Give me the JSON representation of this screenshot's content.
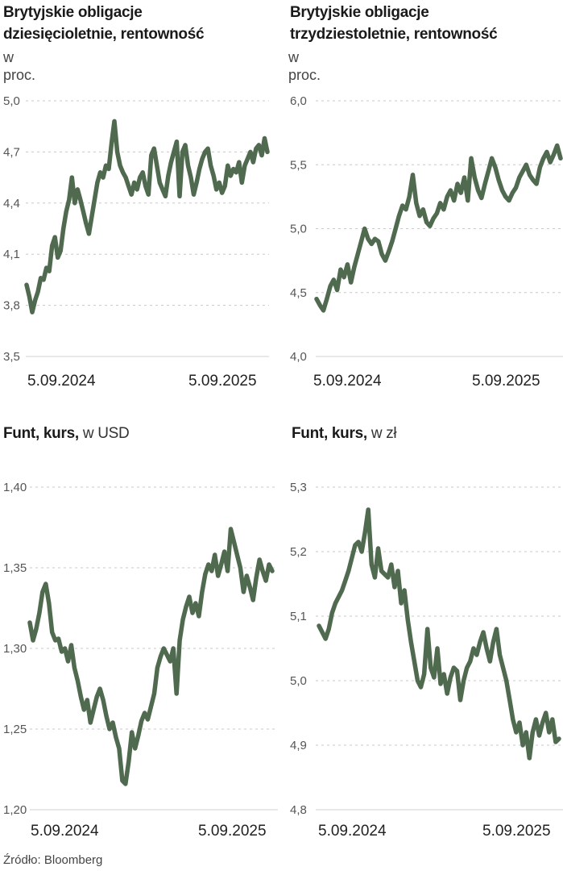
{
  "source": "Źródło: Bloomberg",
  "style": {
    "line_color": "#4f6a4e"
  },
  "chart_data": [
    {
      "type": "line",
      "title_bold": "Brytyjskie obligacje dziesięcioletnie, rentowność",
      "title_light": "",
      "subtitle": "w proc.",
      "yticks": [
        "5,0",
        "4,7",
        "4,4",
        "4,1",
        "3,8",
        "3,5"
      ],
      "ytick_values": [
        5.0,
        4.7,
        4.4,
        4.1,
        3.8,
        3.5
      ],
      "ylim": [
        3.5,
        5.0
      ],
      "xticks": [
        "5.09.2024",
        "5.09.2025"
      ],
      "series": [
        {
          "values": [
            3.92,
            3.85,
            3.76,
            3.83,
            3.88,
            3.96,
            3.95,
            4.02,
            4.0,
            4.15,
            4.2,
            4.08,
            4.12,
            4.25,
            4.35,
            4.42,
            4.55,
            4.4,
            4.48,
            4.42,
            4.35,
            4.28,
            4.22,
            4.32,
            4.42,
            4.52,
            4.58,
            4.55,
            4.62,
            4.6,
            4.75,
            4.88,
            4.7,
            4.62,
            4.58,
            4.55,
            4.5,
            4.45,
            4.52,
            4.48,
            4.55,
            4.58,
            4.5,
            4.45,
            4.68,
            4.72,
            4.62,
            4.52,
            4.48,
            4.44,
            4.56,
            4.64,
            4.7,
            4.76,
            4.44,
            4.7,
            4.74,
            4.62,
            4.55,
            4.45,
            4.52,
            4.6,
            4.66,
            4.7,
            4.72,
            4.62,
            4.56,
            4.48,
            4.52,
            4.46,
            4.5,
            4.62,
            4.56,
            4.6,
            4.58,
            4.64,
            4.52,
            4.62,
            4.66,
            4.7,
            4.64,
            4.72,
            4.74,
            4.68,
            4.78,
            4.7
          ]
        }
      ]
    },
    {
      "type": "line",
      "title_bold": "Brytyjskie obligacje trzydziestoletnie, rentowność",
      "title_light": "",
      "subtitle": "w proc.",
      "yticks": [
        "6,0",
        "5,5",
        "5,0",
        "4,5",
        "4,0"
      ],
      "ytick_values": [
        6.0,
        5.5,
        5.0,
        4.5,
        4.0
      ],
      "ylim": [
        4.0,
        6.0
      ],
      "xticks": [
        "5.09.2024",
        "5.09.2025"
      ],
      "series": [
        {
          "values": [
            4.45,
            4.4,
            4.36,
            4.45,
            4.55,
            4.6,
            4.52,
            4.68,
            4.62,
            4.72,
            4.58,
            4.7,
            4.8,
            4.9,
            5.0,
            4.92,
            4.88,
            4.92,
            4.9,
            4.8,
            4.75,
            4.82,
            4.9,
            5.0,
            5.1,
            5.18,
            5.15,
            5.25,
            5.42,
            5.2,
            5.1,
            5.15,
            5.05,
            5.02,
            5.08,
            5.12,
            5.2,
            5.15,
            5.25,
            5.3,
            5.22,
            5.35,
            5.28,
            5.4,
            5.22,
            5.55,
            5.4,
            5.3,
            5.24,
            5.35,
            5.45,
            5.55,
            5.48,
            5.38,
            5.3,
            5.25,
            5.22,
            5.28,
            5.32,
            5.4,
            5.45,
            5.5,
            5.42,
            5.38,
            5.35,
            5.48,
            5.55,
            5.6,
            5.52,
            5.58,
            5.65,
            5.55
          ]
        }
      ]
    },
    {
      "type": "line",
      "title_bold": "Funt, kurs,",
      "title_light": "w USD",
      "subtitle": "",
      "yticks": [
        "1,40",
        "1,35",
        "1,30",
        "1,25",
        "1,20"
      ],
      "ytick_values": [
        1.4,
        1.35,
        1.3,
        1.25,
        1.2
      ],
      "ylim": [
        1.2,
        1.4
      ],
      "xticks": [
        "5.09.2024",
        "5.09.2025"
      ],
      "series": [
        {
          "values": [
            1.316,
            1.305,
            1.312,
            1.322,
            1.335,
            1.34,
            1.328,
            1.31,
            1.305,
            1.306,
            1.298,
            1.3,
            1.292,
            1.302,
            1.288,
            1.28,
            1.27,
            1.262,
            1.268,
            1.254,
            1.262,
            1.27,
            1.275,
            1.268,
            1.258,
            1.25,
            1.254,
            1.245,
            1.238,
            1.218,
            1.216,
            1.23,
            1.248,
            1.238,
            1.246,
            1.255,
            1.26,
            1.256,
            1.264,
            1.272,
            1.288,
            1.295,
            1.3,
            1.296,
            1.292,
            1.3,
            1.272,
            1.305,
            1.318,
            1.326,
            1.332,
            1.322,
            1.328,
            1.32,
            1.335,
            1.346,
            1.352,
            1.348,
            1.358,
            1.345,
            1.352,
            1.36,
            1.348,
            1.374,
            1.366,
            1.358,
            1.35,
            1.335,
            1.345,
            1.338,
            1.33,
            1.344,
            1.355,
            1.348,
            1.342,
            1.352,
            1.348
          ]
        }
      ]
    },
    {
      "type": "line",
      "title_bold": "Funt, kurs,",
      "title_light": "w zł",
      "subtitle": "",
      "yticks": [
        "5,3",
        "5,2",
        "5,1",
        "5,0",
        "4,9",
        "4,8"
      ],
      "ytick_values": [
        5.3,
        5.2,
        5.1,
        5.0,
        4.9,
        4.8
      ],
      "ylim": [
        4.8,
        5.3
      ],
      "xticks": [
        "5.09.2024",
        "5.09.2025"
      ],
      "series": [
        {
          "values": [
            5.085,
            5.075,
            5.065,
            5.08,
            5.105,
            5.12,
            5.13,
            5.14,
            5.155,
            5.17,
            5.19,
            5.21,
            5.215,
            5.2,
            5.23,
            5.265,
            5.18,
            5.16,
            5.205,
            5.17,
            5.165,
            5.16,
            5.18,
            5.145,
            5.17,
            5.12,
            5.14,
            5.095,
            5.06,
            5.03,
            5.0,
            4.99,
            5.01,
            5.08,
            5.02,
            5.005,
            5.05,
            4.995,
            5.01,
            4.98,
            5.005,
            5.02,
            5.015,
            4.97,
            5.0,
            5.02,
            5.03,
            5.05,
            5.04,
            5.06,
            5.075,
            5.05,
            5.03,
            5.06,
            5.08,
            5.04,
            5.02,
            5.0,
            4.97,
            4.94,
            4.92,
            4.935,
            4.9,
            4.92,
            4.88,
            4.92,
            4.94,
            4.915,
            4.935,
            4.95,
            4.92,
            4.94,
            4.905,
            4.91
          ]
        }
      ]
    }
  ]
}
